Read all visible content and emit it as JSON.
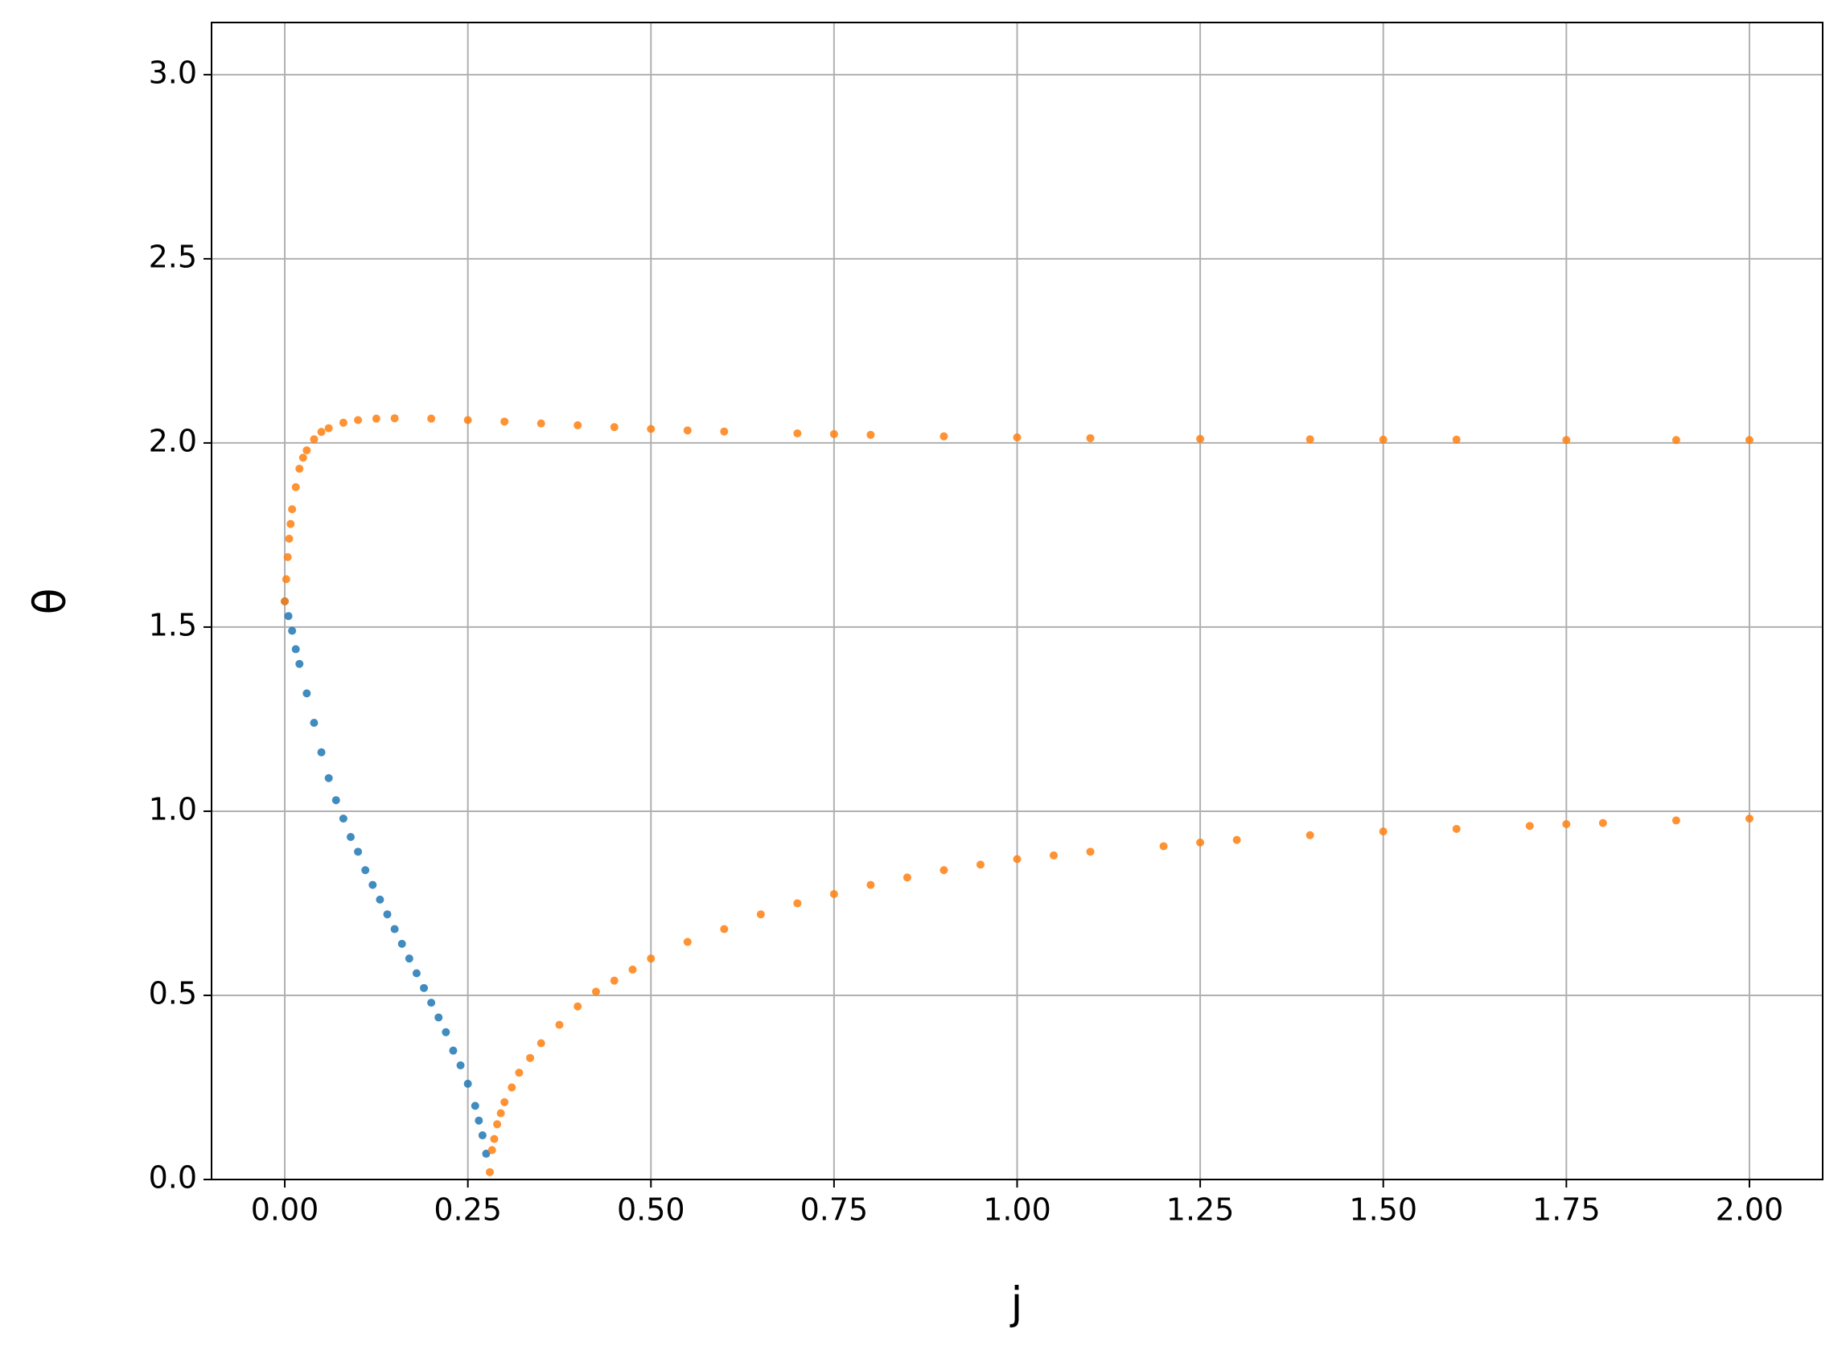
{
  "chart_data": {
    "type": "scatter",
    "x_label": "j",
    "y_label": "θ",
    "xlim": [
      -0.1,
      2.1
    ],
    "ylim": [
      0,
      3.1416
    ],
    "xticks": [
      {
        "value": 0,
        "label": "0.00"
      },
      {
        "value": 0.25,
        "label": "0.25"
      },
      {
        "value": 0.5,
        "label": "0.50"
      },
      {
        "value": 0.75,
        "label": "0.75"
      },
      {
        "value": 1,
        "label": "1.00"
      },
      {
        "value": 1.25,
        "label": "1.25"
      },
      {
        "value": 1.5,
        "label": "1.50"
      },
      {
        "value": 1.75,
        "label": "1.75"
      },
      {
        "value": 2,
        "label": "2.00"
      }
    ],
    "yticks": [
      {
        "value": 0,
        "label": "0.0"
      },
      0.5,
      {
        "value": 1,
        "label": "1.0"
      },
      1.5,
      {
        "value": 2,
        "label": "2.0"
      },
      2.5,
      {
        "value": 3,
        "label": "3.0"
      }
    ],
    "grid": true,
    "series": [
      {
        "color": "#1f77b4",
        "x": [
          0,
          0.005,
          0.01,
          0.015,
          0.02,
          0.03,
          0.04,
          0.05,
          0.06,
          0.07,
          0.08,
          0.09,
          0.1,
          0.11,
          0.12,
          0.13,
          0.14,
          0.15,
          0.16,
          0.17,
          0.18,
          0.19,
          0.2,
          0.21,
          0.22,
          0.23,
          0.24,
          0.25,
          0.26,
          0.265,
          0.27,
          0.275
        ],
        "values": [
          1.57,
          1.53,
          1.49,
          1.44,
          1.4,
          1.32,
          1.24,
          1.16,
          1.09,
          1.03,
          0.98,
          0.93,
          0.89,
          0.84,
          0.8,
          0.76,
          0.72,
          0.68,
          0.64,
          0.6,
          0.56,
          0.52,
          0.48,
          0.44,
          0.4,
          0.35,
          0.31,
          0.26,
          0.2,
          0.16,
          0.12,
          0.07
        ]
      },
      {
        "color": "#ff7f0e",
        "x": [
          0,
          0.002,
          0.004,
          0.006,
          0.008,
          0.01,
          0.015,
          0.02,
          0.025,
          0.03,
          0.04,
          0.05,
          0.06,
          0.08,
          0.1,
          0.125,
          0.15,
          0.2,
          0.25,
          0.3,
          0.35,
          0.4,
          0.45,
          0.5,
          0.55,
          0.6,
          0.7,
          0.75,
          0.8,
          0.9,
          1.0,
          1.1,
          1.25,
          1.4,
          1.5,
          1.6,
          1.75,
          1.9,
          2.0,
          0.28,
          0.283,
          0.286,
          0.29,
          0.295,
          0.3,
          0.31,
          0.32,
          0.335,
          0.35,
          0.375,
          0.4,
          0.425,
          0.45,
          0.475,
          0.5,
          0.55,
          0.6,
          0.65,
          0.7,
          0.75,
          0.8,
          0.85,
          0.9,
          0.95,
          1.0,
          1.05,
          1.1,
          1.2,
          1.25,
          1.3,
          1.4,
          1.5,
          1.6,
          1.7,
          1.75,
          1.8,
          1.9,
          2.0
        ],
        "values": [
          1.57,
          1.63,
          1.69,
          1.74,
          1.78,
          1.82,
          1.88,
          1.93,
          1.96,
          1.98,
          2.01,
          2.03,
          2.04,
          2.055,
          2.062,
          2.066,
          2.067,
          2.066,
          2.062,
          2.058,
          2.053,
          2.048,
          2.043,
          2.038,
          2.034,
          2.031,
          2.026,
          2.024,
          2.022,
          2.018,
          2.015,
          2.013,
          2.011,
          2.01,
          2.009,
          2.009,
          2.008,
          2.008,
          2.008,
          0.02,
          0.08,
          0.11,
          0.15,
          0.18,
          0.21,
          0.25,
          0.29,
          0.33,
          0.37,
          0.42,
          0.47,
          0.51,
          0.54,
          0.57,
          0.6,
          0.645,
          0.68,
          0.72,
          0.75,
          0.775,
          0.8,
          0.82,
          0.84,
          0.855,
          0.87,
          0.88,
          0.89,
          0.905,
          0.915,
          0.922,
          0.935,
          0.945,
          0.952,
          0.96,
          0.965,
          0.968,
          0.975,
          0.98
        ]
      }
    ]
  }
}
